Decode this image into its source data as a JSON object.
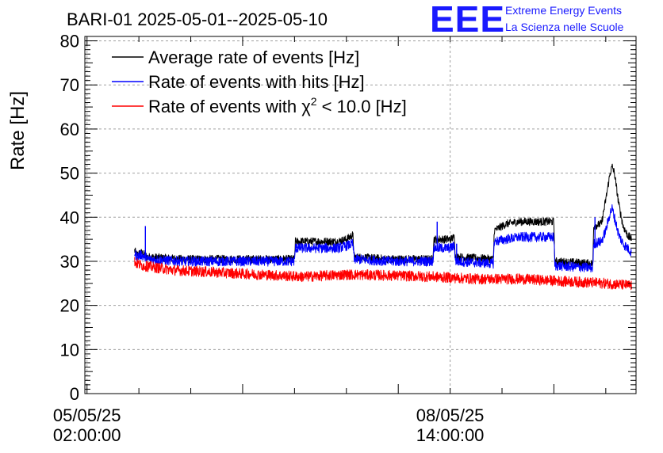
{
  "chart_data": {
    "type": "line",
    "title": "BARI-01 2025-05-01--2025-05-10",
    "ylabel": "Rate [Hz]",
    "xlabel": "",
    "ylim": [
      0,
      81
    ],
    "yticks": [
      0,
      10,
      20,
      30,
      40,
      50,
      60,
      70,
      80
    ],
    "x_unit": "hours since 05/05/25 02:00:00",
    "xlim": [
      -0.5,
      127
    ],
    "x_tick_labels": [
      {
        "x": 0,
        "line1": "05/05/25",
        "line2": "02:00:00"
      },
      {
        "x": 84,
        "line1": "08/05/25",
        "line2": "14:00:00"
      }
    ],
    "grid": true,
    "legend_position": "top-left",
    "series": [
      {
        "name": "Average rate of events [Hz]",
        "color": "#000000",
        "noise": 0.9,
        "points": [
          [
            11,
            32.5
          ],
          [
            11.5,
            31.5
          ],
          [
            12.5,
            32
          ],
          [
            14,
            31
          ],
          [
            22,
            30.5
          ],
          [
            30,
            30.5
          ],
          [
            48,
            30.5
          ],
          [
            48.2,
            34.5
          ],
          [
            58,
            34.5
          ],
          [
            60,
            35
          ],
          [
            61.5,
            36
          ],
          [
            61.8,
            31
          ],
          [
            70,
            30.5
          ],
          [
            80,
            30.5
          ],
          [
            80.2,
            35
          ],
          [
            84,
            35
          ],
          [
            85,
            35.5
          ],
          [
            85.2,
            31
          ],
          [
            94,
            30.5
          ],
          [
            94.2,
            37
          ],
          [
            97,
            38.5
          ],
          [
            100,
            39
          ],
          [
            108,
            39
          ],
          [
            108.2,
            30
          ],
          [
            117,
            29.5
          ],
          [
            117.2,
            38
          ],
          [
            119,
            38.5
          ],
          [
            120,
            44
          ],
          [
            121,
            50
          ],
          [
            121.5,
            51.5
          ],
          [
            122,
            50
          ],
          [
            123,
            43
          ],
          [
            124,
            38
          ],
          [
            125,
            36
          ],
          [
            126,
            35
          ]
        ]
      },
      {
        "name": "Rate of events with hits [Hz]",
        "color": "#0000ff",
        "noise": 1.1,
        "points": [
          [
            11,
            32
          ],
          [
            11.5,
            31
          ],
          [
            12.5,
            31.5
          ],
          [
            14,
            30.5
          ],
          [
            22,
            30
          ],
          [
            30,
            30
          ],
          [
            48,
            30
          ],
          [
            48.2,
            33
          ],
          [
            58,
            33
          ],
          [
            60,
            33.5
          ],
          [
            61.5,
            34
          ],
          [
            61.8,
            30.5
          ],
          [
            70,
            30
          ],
          [
            80,
            30
          ],
          [
            80.2,
            33
          ],
          [
            84,
            33
          ],
          [
            85,
            33.5
          ],
          [
            85.2,
            30
          ],
          [
            94,
            29.5
          ],
          [
            94.2,
            34.5
          ],
          [
            97,
            35
          ],
          [
            100,
            35.5
          ],
          [
            108,
            35.5
          ],
          [
            108.2,
            29
          ],
          [
            117,
            28.5
          ],
          [
            117.2,
            34
          ],
          [
            119,
            34.5
          ],
          [
            120,
            37
          ],
          [
            121,
            41
          ],
          [
            121.5,
            42
          ],
          [
            122,
            40
          ],
          [
            123,
            36
          ],
          [
            124,
            34
          ],
          [
            125,
            33
          ],
          [
            126,
            32
          ]
        ],
        "spikes": [
          [
            13.5,
            38
          ],
          [
            48.5,
            34
          ],
          [
            81,
            39
          ],
          [
            85.5,
            34
          ],
          [
            117.5,
            40
          ]
        ]
      },
      {
        "name": "Rate of events with χ2 < 10.0 [Hz]",
        "color": "#ff0000",
        "noise": 1.2,
        "points": [
          [
            11,
            30
          ],
          [
            11.5,
            29.5
          ],
          [
            13,
            29
          ],
          [
            20,
            28
          ],
          [
            30,
            27.5
          ],
          [
            40,
            27
          ],
          [
            50,
            26.5
          ],
          [
            60,
            27
          ],
          [
            70,
            26.8
          ],
          [
            80,
            26.5
          ],
          [
            90,
            26
          ],
          [
            100,
            26
          ],
          [
            110,
            25.5
          ],
          [
            120,
            25
          ],
          [
            126,
            24.5
          ]
        ],
        "spikes": [
          [
            14,
            30
          ]
        ]
      }
    ]
  },
  "logo": {
    "letters": "EEE",
    "line1": "Extreme Energy Events",
    "line2": "La Scienza nelle Scuole"
  },
  "legend": {
    "entry1": "Average rate of events [Hz]",
    "entry2": "Rate of events with hits [Hz]",
    "entry3_pre": "Rate of events with χ",
    "entry3_sup": "2",
    "entry3_post": " < 10.0 [Hz]"
  }
}
